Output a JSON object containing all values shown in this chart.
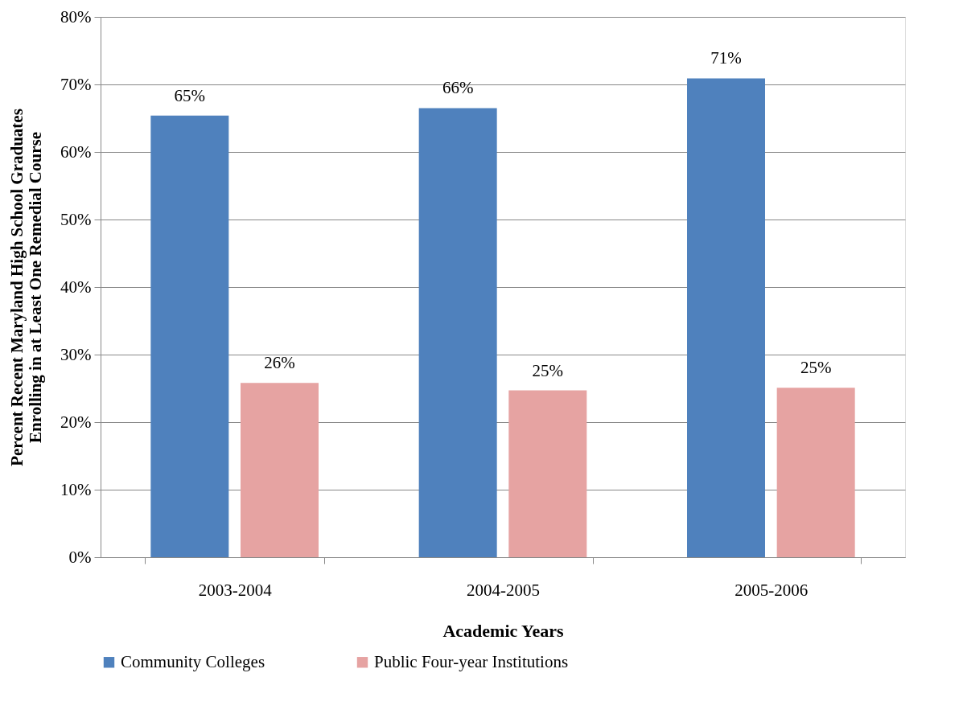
{
  "chart_data": {
    "type": "bar",
    "xlabel": "Academic Years",
    "ylabel": "Percent Recent Maryland High School Graduates\nEnrolling in at Least One Remedial Course",
    "categories": [
      "2003-2004",
      "2004-2005",
      "2005-2006"
    ],
    "series": [
      {
        "name": "Community Colleges",
        "color": "#4f81bd",
        "values": [
          65.4,
          66.5,
          70.9
        ],
        "value_labels": [
          "65%",
          "66%",
          "71%"
        ]
      },
      {
        "name": "Public Four-year Institutions",
        "color": "#e6a3a2",
        "values": [
          25.8,
          24.7,
          25.1
        ],
        "value_labels": [
          "26%",
          "25%",
          "25%"
        ]
      }
    ],
    "ylim": [
      0,
      80
    ],
    "yticks": [
      {
        "value": 0,
        "label": "0%"
      },
      {
        "value": 10,
        "label": "10%"
      },
      {
        "value": 20,
        "label": "20%"
      },
      {
        "value": 30,
        "label": "30%"
      },
      {
        "value": 40,
        "label": "40%"
      },
      {
        "value": 50,
        "label": "50%"
      },
      {
        "value": 60,
        "label": "60%"
      },
      {
        "value": 70,
        "label": "70%"
      },
      {
        "value": 80,
        "label": "80%"
      }
    ],
    "grid": "y",
    "legend": "bottom"
  }
}
